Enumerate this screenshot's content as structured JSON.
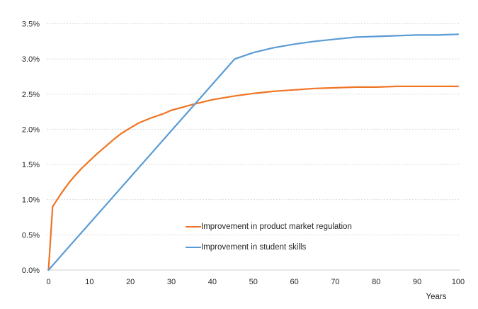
{
  "chart_data": {
    "type": "line",
    "title": "",
    "xlabel": "Years",
    "ylabel": "",
    "xlim": [
      0,
      100
    ],
    "ylim": [
      0,
      3.5
    ],
    "grid": "horizontal-dashed",
    "legend_position": "inside-lower-center",
    "x_ticks": [
      0,
      10,
      20,
      30,
      40,
      50,
      60,
      70,
      80,
      90,
      100
    ],
    "y_ticks": [
      0,
      0.5,
      1.0,
      1.5,
      2.0,
      2.5,
      3.0,
      3.5
    ],
    "y_tick_labels": [
      "0.0%",
      "0.5%",
      "1.0%",
      "1.5%",
      "2.0%",
      "2.5%",
      "3.0%",
      "3.5%"
    ],
    "series": [
      {
        "name": "Improvement in product market regulation",
        "color": "#ef7423",
        "points": [
          [
            0,
            0
          ],
          [
            1,
            0.9
          ],
          [
            2,
            0.99
          ],
          [
            3,
            1.08
          ],
          [
            4,
            1.16
          ],
          [
            5,
            1.24
          ],
          [
            6,
            1.31
          ],
          [
            8,
            1.44
          ],
          [
            10,
            1.55
          ],
          [
            12,
            1.66
          ],
          [
            14,
            1.76
          ],
          [
            16,
            1.86
          ],
          [
            18,
            1.95
          ],
          [
            20,
            2.02
          ],
          [
            22,
            2.09
          ],
          [
            25,
            2.16
          ],
          [
            28,
            2.22
          ],
          [
            30,
            2.27
          ],
          [
            35,
            2.35
          ],
          [
            40,
            2.42
          ],
          [
            45,
            2.47
          ],
          [
            50,
            2.51
          ],
          [
            55,
            2.54
          ],
          [
            60,
            2.56
          ],
          [
            65,
            2.58
          ],
          [
            70,
            2.59
          ],
          [
            75,
            2.6
          ],
          [
            80,
            2.6
          ],
          [
            85,
            2.61
          ],
          [
            90,
            2.61
          ],
          [
            95,
            2.61
          ],
          [
            100,
            2.61
          ]
        ]
      },
      {
        "name": "Improvement in student skills",
        "color": "#5b9bd5",
        "points": [
          [
            0,
            0
          ],
          [
            5,
            0.33
          ],
          [
            10,
            0.66
          ],
          [
            15,
            0.99
          ],
          [
            20,
            1.32
          ],
          [
            25,
            1.65
          ],
          [
            30,
            1.98
          ],
          [
            35,
            2.31
          ],
          [
            40,
            2.64
          ],
          [
            45,
            2.97
          ],
          [
            45.5,
            3.0
          ],
          [
            47,
            3.03
          ],
          [
            50,
            3.09
          ],
          [
            55,
            3.16
          ],
          [
            60,
            3.21
          ],
          [
            65,
            3.25
          ],
          [
            70,
            3.28
          ],
          [
            75,
            3.31
          ],
          [
            80,
            3.32
          ],
          [
            85,
            3.33
          ],
          [
            90,
            3.34
          ],
          [
            95,
            3.34
          ],
          [
            100,
            3.35
          ]
        ]
      }
    ]
  },
  "colors": {
    "background": "#ffffff",
    "gridline": "#d9d9d9",
    "axis": "#cfcfcf",
    "tick_text": "#262626"
  }
}
